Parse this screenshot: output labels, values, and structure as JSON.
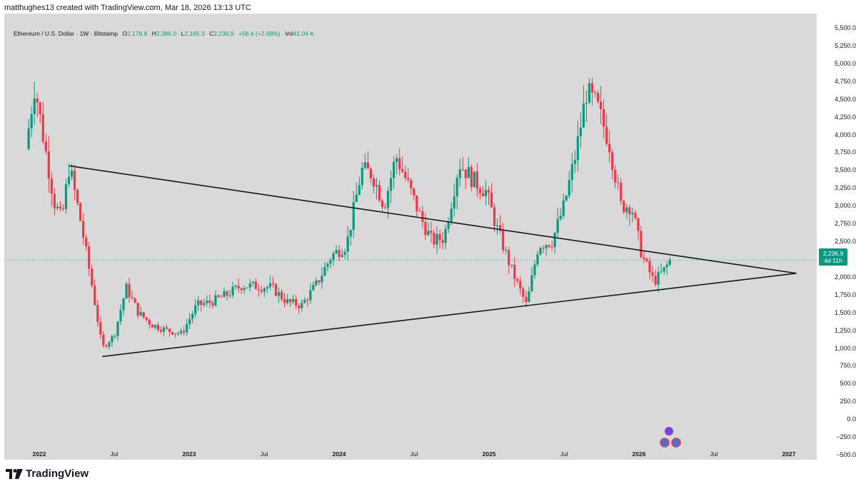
{
  "header": {
    "text": "matthughes13 created with TradingView.com, Mar 18, 2026 13:13 UTC"
  },
  "legend": {
    "symbol": "Ethereum / U.S. Dollar · 1W · Bitstamp",
    "open_label": "O",
    "open": "2,178.8",
    "high_label": "H",
    "high": "2,386.0",
    "low_label": "L",
    "low": "2,165.3",
    "close_label": "C",
    "close": "2,236.9",
    "change": "+58.4 (+2.68%)",
    "vol_label": "Vol",
    "vol": "41.04 K"
  },
  "price_tag": {
    "price": "2,236.9",
    "countdown": "4d 11h"
  },
  "footer": {
    "brand": "TradingView"
  },
  "colors": {
    "up": "#089981",
    "down": "#f23645",
    "bg": "#d9d9d9",
    "line": "#131722"
  },
  "chart_data": {
    "type": "candlestick",
    "title": "Ethereum / U.S. Dollar · 1W · Bitstamp",
    "ylim": [
      -600,
      5650
    ],
    "xlim": [
      2021.9,
      2027.1
    ],
    "yticks": [
      {
        "v": 5500,
        "label": "5,500.0"
      },
      {
        "v": 5250,
        "label": "5,250.0"
      },
      {
        "v": 5000,
        "label": "5,000.0"
      },
      {
        "v": 4750,
        "label": "4,750.0"
      },
      {
        "v": 4500,
        "label": "4,500.0"
      },
      {
        "v": 4250,
        "label": "4,250.0"
      },
      {
        "v": 4000,
        "label": "4,000.0"
      },
      {
        "v": 3750,
        "label": "3,750.0"
      },
      {
        "v": 3500,
        "label": "3,500.0"
      },
      {
        "v": 3250,
        "label": "3,250.0"
      },
      {
        "v": 3000,
        "label": "3,000.0"
      },
      {
        "v": 2750,
        "label": "2,750.0"
      },
      {
        "v": 2500,
        "label": "2,500.0"
      },
      {
        "v": 2000,
        "label": "2,000.0"
      },
      {
        "v": 1750,
        "label": "1,750.0"
      },
      {
        "v": 1500,
        "label": "1,500.0"
      },
      {
        "v": 1250,
        "label": "1,250.0"
      },
      {
        "v": 1000,
        "label": "1,000.0"
      },
      {
        "v": 750,
        "label": "750.0"
      },
      {
        "v": 500,
        "label": "500.0"
      },
      {
        "v": 250,
        "label": "250.0"
      },
      {
        "v": 0,
        "label": "0.0"
      },
      {
        "v": -250,
        "label": "−250.0"
      },
      {
        "v": -500,
        "label": "−500.0"
      }
    ],
    "xticks": [
      {
        "t": 2022.0,
        "label": "2022",
        "bold": true
      },
      {
        "t": 2022.5,
        "label": "Jul",
        "bold": false
      },
      {
        "t": 2023.0,
        "label": "2023",
        "bold": true
      },
      {
        "t": 2023.5,
        "label": "Jul",
        "bold": false
      },
      {
        "t": 2024.0,
        "label": "2024",
        "bold": true
      },
      {
        "t": 2024.5,
        "label": "Jul",
        "bold": false
      },
      {
        "t": 2025.0,
        "label": "2025",
        "bold": true
      },
      {
        "t": 2025.5,
        "label": "Jul",
        "bold": false
      },
      {
        "t": 2026.0,
        "label": "2026",
        "bold": true
      },
      {
        "t": 2026.5,
        "label": "Jul",
        "bold": false
      },
      {
        "t": 2027.0,
        "label": "2027",
        "bold": true
      }
    ],
    "last_price": 2236.9,
    "trendlines": [
      {
        "name": "upper-resistance",
        "from": [
          2022.2,
          3560
        ],
        "to": [
          2027.05,
          2050
        ]
      },
      {
        "name": "lower-support",
        "from": [
          2022.42,
          880
        ],
        "to": [
          2027.05,
          2050
        ]
      }
    ],
    "anchors": [
      [
        2021.91,
        3800
      ],
      [
        2021.97,
        4700
      ],
      [
        2022.02,
        4050
      ],
      [
        2022.1,
        3050
      ],
      [
        2022.15,
        2800
      ],
      [
        2022.2,
        3560
      ],
      [
        2022.27,
        2850
      ],
      [
        2022.35,
        1900
      ],
      [
        2022.42,
        1000
      ],
      [
        2022.5,
        1180
      ],
      [
        2022.58,
        1850
      ],
      [
        2022.66,
        1500
      ],
      [
        2022.75,
        1330
      ],
      [
        2022.85,
        1250
      ],
      [
        2022.95,
        1200
      ],
      [
        2023.05,
        1600
      ],
      [
        2023.15,
        1650
      ],
      [
        2023.25,
        1750
      ],
      [
        2023.35,
        1880
      ],
      [
        2023.45,
        1870
      ],
      [
        2023.55,
        1850
      ],
      [
        2023.65,
        1650
      ],
      [
        2023.75,
        1600
      ],
      [
        2023.85,
        1900
      ],
      [
        2023.95,
        2300
      ],
      [
        2024.05,
        2450
      ],
      [
        2024.15,
        3500
      ],
      [
        2024.22,
        3450
      ],
      [
        2024.3,
        3000
      ],
      [
        2024.38,
        3700
      ],
      [
        2024.45,
        3350
      ],
      [
        2024.55,
        2800
      ],
      [
        2024.62,
        2500
      ],
      [
        2024.7,
        2550
      ],
      [
        2024.8,
        3600
      ],
      [
        2024.9,
        3350
      ],
      [
        2024.98,
        3200
      ],
      [
        2025.05,
        2700
      ],
      [
        2025.15,
        2100
      ],
      [
        2025.25,
        1600
      ],
      [
        2025.33,
        2450
      ],
      [
        2025.42,
        2500
      ],
      [
        2025.5,
        3000
      ],
      [
        2025.58,
        3750
      ],
      [
        2025.65,
        4600
      ],
      [
        2025.72,
        4400
      ],
      [
        2025.8,
        3900
      ],
      [
        2025.88,
        3000
      ],
      [
        2025.95,
        3000
      ],
      [
        2026.02,
        2300
      ],
      [
        2026.1,
        1930
      ],
      [
        2026.17,
        2100
      ],
      [
        2026.21,
        2236.9
      ]
    ]
  }
}
